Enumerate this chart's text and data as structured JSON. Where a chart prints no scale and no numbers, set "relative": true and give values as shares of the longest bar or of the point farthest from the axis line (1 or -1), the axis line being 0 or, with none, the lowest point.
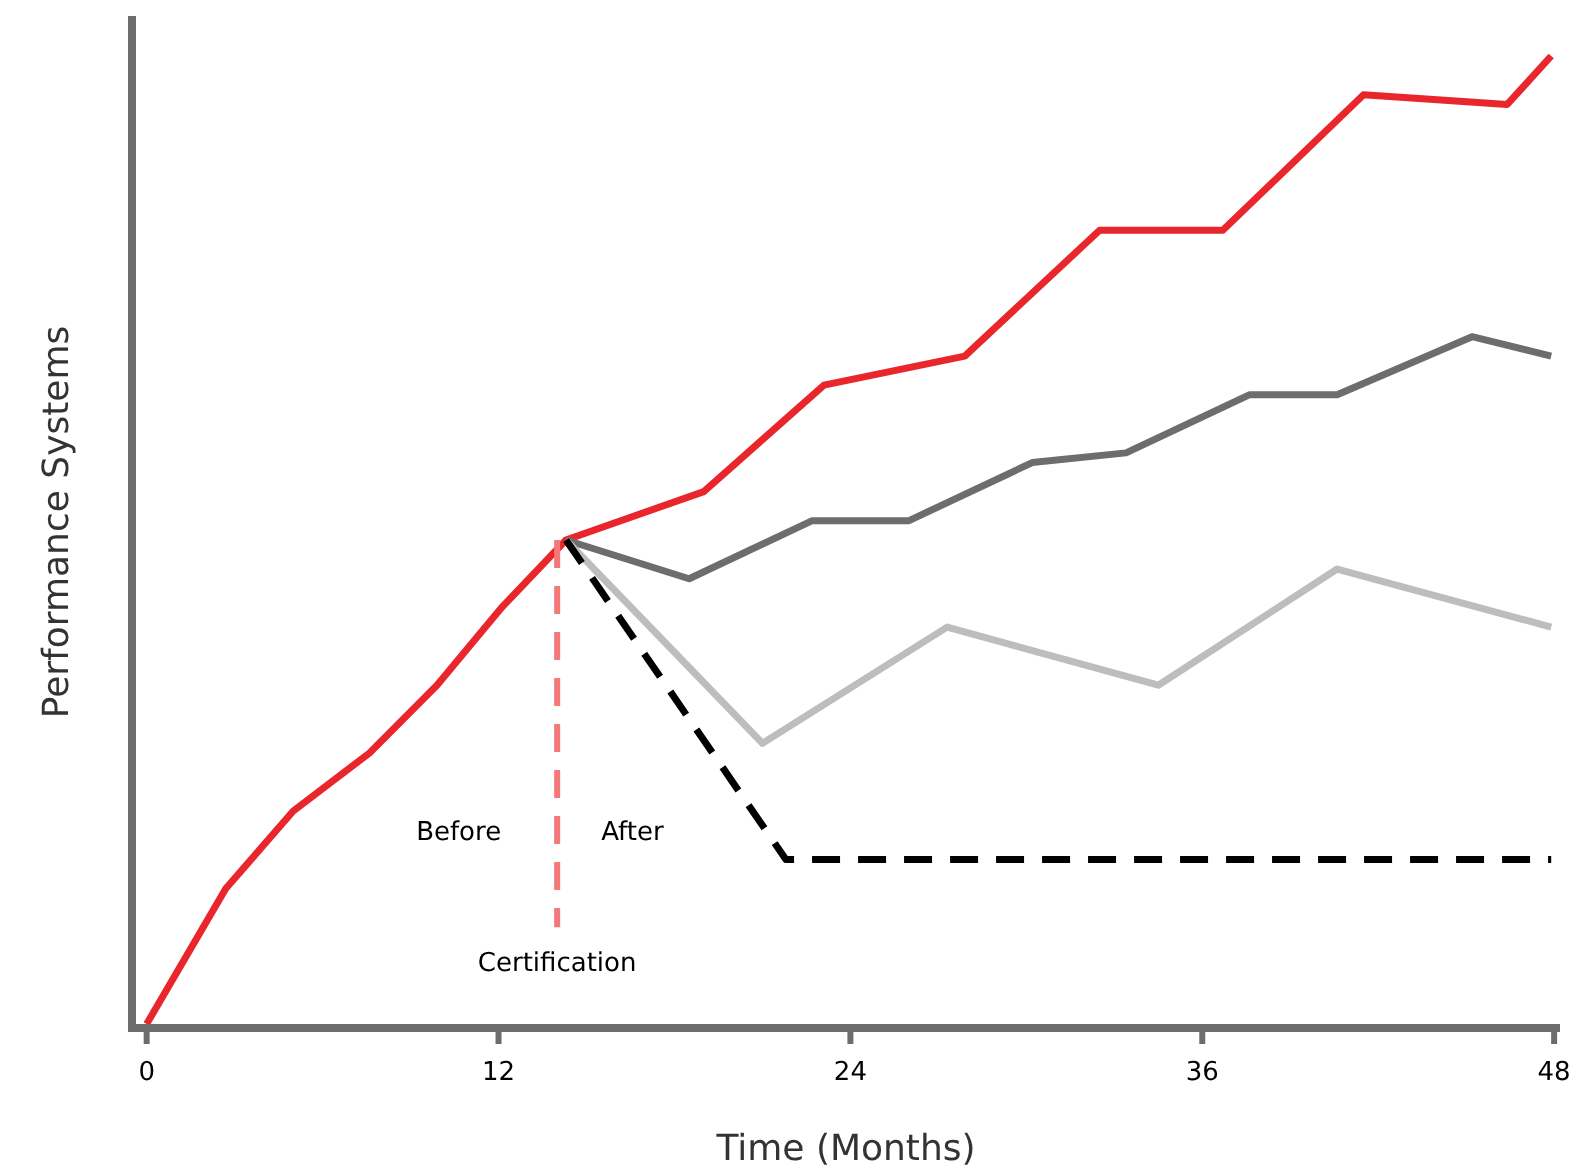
{
  "chart_data": {
    "type": "line",
    "relative": true,
    "xlabel": "Time (Months)",
    "ylabel": "Performance Systems",
    "xlim": [
      -0.5,
      48.2
    ],
    "xticks": [
      0,
      12,
      24,
      36,
      48
    ],
    "grid": false,
    "marker": "none",
    "series": [
      {
        "color": "#e8262b",
        "line_style": "solid",
        "x": [
          0,
          2.7,
          5.0,
          7.6,
          9.9,
          12.1,
          14.3,
          19.0,
          23.1,
          27.9,
          32.5,
          36.7,
          41.5,
          46.4,
          47.9
        ],
        "values": [
          0,
          0.14,
          0.22,
          0.28,
          0.35,
          0.43,
          0.5,
          0.55,
          0.66,
          0.69,
          0.82,
          0.82,
          0.96,
          0.95,
          1.0
        ]
      },
      {
        "color": "#6d6d6d",
        "line_style": "solid",
        "x": [
          14.3,
          18.5,
          22.7,
          26.0,
          30.2,
          33.4,
          37.6,
          40.6,
          45.2,
          47.9
        ],
        "values": [
          0.5,
          0.46,
          0.52,
          0.52,
          0.58,
          0.59,
          0.65,
          0.65,
          0.71,
          0.69
        ]
      },
      {
        "color": "#bdbdbd",
        "line_style": "solid",
        "x": [
          14.3,
          21.0,
          27.3,
          34.5,
          40.6,
          47.9
        ],
        "values": [
          0.5,
          0.29,
          0.41,
          0.35,
          0.47,
          0.41
        ]
      },
      {
        "color": "#000000",
        "line_style": "dashed",
        "x": [
          14.3,
          21.8,
          47.9
        ],
        "values": [
          0.5,
          0.17,
          0.17
        ]
      }
    ],
    "ref_lines": [
      {
        "axis": "x",
        "value": 14,
        "label": "Certification",
        "color": "#f4777a",
        "line_style": "dashed"
      }
    ],
    "annotations": [
      "Before",
      "After"
    ]
  }
}
